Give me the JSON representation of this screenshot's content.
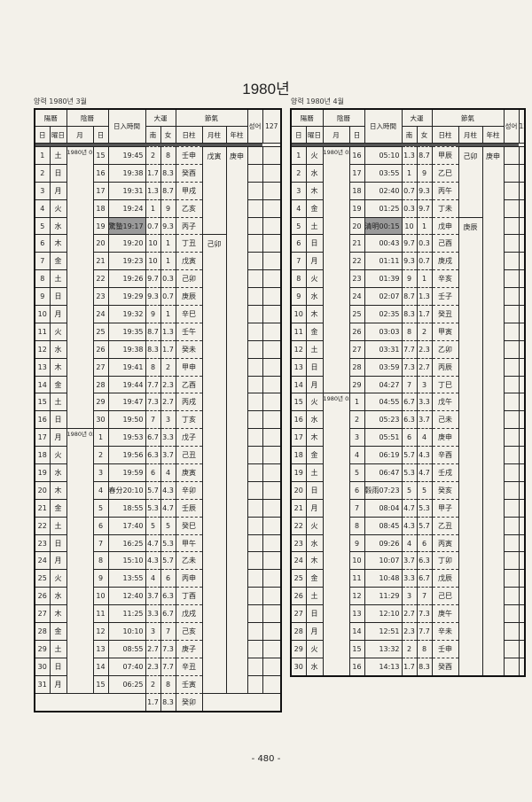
{
  "title": "1980년",
  "page_number": "- 480 -",
  "headers": {
    "solar": "陽曆",
    "lunar": "陰曆",
    "day": "日",
    "weekday": "曜日",
    "month": "月",
    "lday": "日",
    "sunset": "日入時間",
    "daeun": "大運",
    "male": "南",
    "female": "女",
    "jeolgi": "節氣",
    "day_pillar": "日柱",
    "month_pillar": "月柱",
    "year_pillar": "年柱",
    "extra1": "성어",
    "extra2": "127"
  },
  "tables": [
    {
      "subtitle": "양력 1980년 3월",
      "lunar_months": [
        {
          "label": "1980년 01월",
          "span": 16
        },
        {
          "label": "1980년 02월",
          "span": 15
        }
      ],
      "month_pillars": [
        {
          "label": "戊寅",
          "span": 5
        },
        {
          "label": "己卯",
          "span": 26
        }
      ],
      "year_pillar": "庚申",
      "highlight_rows": [
        5
      ],
      "rows": [
        [
          "1",
          "土",
          "15",
          "19:45",
          "2",
          "8",
          "壬申"
        ],
        [
          "2",
          "日",
          "16",
          "19:38",
          "1.7",
          "8.3",
          "癸酉"
        ],
        [
          "3",
          "月",
          "17",
          "19:31",
          "1.3",
          "8.7",
          "甲戌"
        ],
        [
          "4",
          "火",
          "18",
          "19:24",
          "1",
          "9",
          "乙亥"
        ],
        [
          "5",
          "水",
          "19",
          "驚蟄19:17",
          "0.7",
          "9.3",
          "丙子"
        ],
        [
          "6",
          "木",
          "20",
          "19:20",
          "10",
          "1",
          "丁丑"
        ],
        [
          "7",
          "金",
          "21",
          "19:23",
          "10",
          "1",
          "戊寅"
        ],
        [
          "8",
          "土",
          "22",
          "19:26",
          "9.7",
          "0.3",
          "己卯"
        ],
        [
          "9",
          "日",
          "23",
          "19:29",
          "9.3",
          "0.7",
          "庚辰"
        ],
        [
          "10",
          "月",
          "24",
          "19:32",
          "9",
          "1",
          "辛巳"
        ],
        [
          "11",
          "火",
          "25",
          "19:35",
          "8.7",
          "1.3",
          "壬午"
        ],
        [
          "12",
          "水",
          "26",
          "19:38",
          "8.3",
          "1.7",
          "癸未"
        ],
        [
          "13",
          "木",
          "27",
          "19:41",
          "8",
          "2",
          "甲申"
        ],
        [
          "14",
          "金",
          "28",
          "19:44",
          "7.7",
          "2.3",
          "乙酉"
        ],
        [
          "15",
          "土",
          "29",
          "19:47",
          "7.3",
          "2.7",
          "丙戌"
        ],
        [
          "16",
          "日",
          "30",
          "19:50",
          "7",
          "3",
          "丁亥"
        ],
        [
          "17",
          "月",
          "1",
          "19:53",
          "6.7",
          "3.3",
          "戊子"
        ],
        [
          "18",
          "火",
          "2",
          "19:56",
          "6.3",
          "3.7",
          "己丑"
        ],
        [
          "19",
          "水",
          "3",
          "19:59",
          "6",
          "4",
          "庚寅"
        ],
        [
          "20",
          "木",
          "4",
          "春分20:10",
          "5.7",
          "4.3",
          "辛卯"
        ],
        [
          "21",
          "金",
          "5",
          "18:55",
          "5.3",
          "4.7",
          "壬辰"
        ],
        [
          "22",
          "土",
          "6",
          "17:40",
          "5",
          "5",
          "癸巳"
        ],
        [
          "23",
          "日",
          "7",
          "16:25",
          "4.7",
          "5.3",
          "甲午"
        ],
        [
          "24",
          "月",
          "8",
          "15:10",
          "4.3",
          "5.7",
          "乙未"
        ],
        [
          "25",
          "火",
          "9",
          "13:55",
          "4",
          "6",
          "丙申"
        ],
        [
          "26",
          "水",
          "10",
          "12:40",
          "3.7",
          "6.3",
          "丁酉"
        ],
        [
          "27",
          "木",
          "11",
          "11:25",
          "3.3",
          "6.7",
          "戊戌"
        ],
        [
          "28",
          "金",
          "12",
          "10:10",
          "3",
          "7",
          "己亥"
        ],
        [
          "29",
          "土",
          "13",
          "08:55",
          "2.7",
          "7.3",
          "庚子"
        ],
        [
          "30",
          "日",
          "14",
          "07:40",
          "2.3",
          "7.7",
          "辛丑"
        ],
        [
          "31",
          "月",
          "15",
          "06:25",
          "2",
          "8",
          "壬寅"
        ]
      ],
      "extra_daeun": [
        "1.7",
        "8.3",
        "癸卯"
      ]
    },
    {
      "subtitle": "양력 1980년 4월",
      "lunar_months": [
        {
          "label": "1980년 02월",
          "span": 14
        },
        {
          "label": "1980년 03월",
          "span": 16
        }
      ],
      "month_pillars": [
        {
          "label": "己卯",
          "span": 4
        },
        {
          "label": "庚辰",
          "span": 26
        }
      ],
      "year_pillar": "庚申",
      "highlight_rows": [
        5
      ],
      "rows": [
        [
          "1",
          "火",
          "16",
          "05:10",
          "1.3",
          "8.7",
          "甲辰"
        ],
        [
          "2",
          "水",
          "17",
          "03:55",
          "1",
          "9",
          "乙巳"
        ],
        [
          "3",
          "木",
          "18",
          "02:40",
          "0.7",
          "9.3",
          "丙午"
        ],
        [
          "4",
          "金",
          "19",
          "01:25",
          "0.3",
          "9.7",
          "丁未"
        ],
        [
          "5",
          "土",
          "20",
          "清明00:15",
          "10",
          "1",
          "戊申"
        ],
        [
          "6",
          "日",
          "21",
          "00:43",
          "9.7",
          "0.3",
          "己酉"
        ],
        [
          "7",
          "月",
          "22",
          "01:11",
          "9.3",
          "0.7",
          "庚戌"
        ],
        [
          "8",
          "火",
          "23",
          "01:39",
          "9",
          "1",
          "辛亥"
        ],
        [
          "9",
          "水",
          "24",
          "02:07",
          "8.7",
          "1.3",
          "壬子"
        ],
        [
          "10",
          "木",
          "25",
          "02:35",
          "8.3",
          "1.7",
          "癸丑"
        ],
        [
          "11",
          "金",
          "26",
          "03:03",
          "8",
          "2",
          "甲寅"
        ],
        [
          "12",
          "土",
          "27",
          "03:31",
          "7.7",
          "2.3",
          "乙卯"
        ],
        [
          "13",
          "日",
          "28",
          "03:59",
          "7.3",
          "2.7",
          "丙辰"
        ],
        [
          "14",
          "月",
          "29",
          "04:27",
          "7",
          "3",
          "丁巳"
        ],
        [
          "15",
          "火",
          "1",
          "04:55",
          "6.7",
          "3.3",
          "戊午"
        ],
        [
          "16",
          "水",
          "2",
          "05:23",
          "6.3",
          "3.7",
          "己未"
        ],
        [
          "17",
          "木",
          "3",
          "05:51",
          "6",
          "4",
          "庚申"
        ],
        [
          "18",
          "金",
          "4",
          "06:19",
          "5.7",
          "4.3",
          "辛酉"
        ],
        [
          "19",
          "土",
          "5",
          "06:47",
          "5.3",
          "4.7",
          "壬戌"
        ],
        [
          "20",
          "日",
          "6",
          "穀雨07:23",
          "5",
          "5",
          "癸亥"
        ],
        [
          "21",
          "月",
          "7",
          "08:04",
          "4.7",
          "5.3",
          "甲子"
        ],
        [
          "22",
          "火",
          "8",
          "08:45",
          "4.3",
          "5.7",
          "乙丑"
        ],
        [
          "23",
          "水",
          "9",
          "09:26",
          "4",
          "6",
          "丙寅"
        ],
        [
          "24",
          "木",
          "10",
          "10:07",
          "3.7",
          "6.3",
          "丁卯"
        ],
        [
          "25",
          "金",
          "11",
          "10:48",
          "3.3",
          "6.7",
          "戊辰"
        ],
        [
          "26",
          "土",
          "12",
          "11:29",
          "3",
          "7",
          "己巳"
        ],
        [
          "27",
          "日",
          "13",
          "12:10",
          "2.7",
          "7.3",
          "庚午"
        ],
        [
          "28",
          "月",
          "14",
          "12:51",
          "2.3",
          "7.7",
          "辛未"
        ],
        [
          "29",
          "火",
          "15",
          "13:32",
          "2",
          "8",
          "壬申"
        ],
        [
          "30",
          "水",
          "16",
          "14:13",
          "1.7",
          "8.3",
          "癸酉"
        ]
      ]
    }
  ]
}
